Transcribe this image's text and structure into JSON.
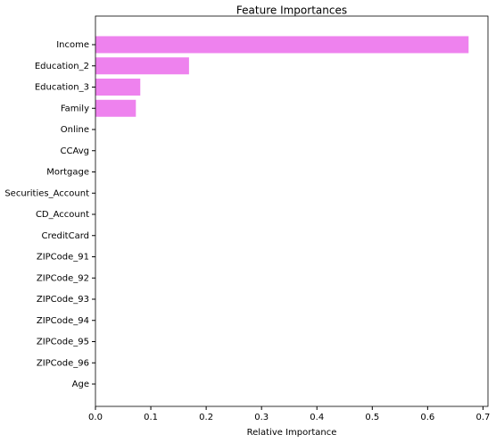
{
  "chart_data": {
    "type": "barh",
    "title": "Feature Importances",
    "x_label": "Relative Importance",
    "categories": [
      "Income",
      "Education_2",
      "Education_3",
      "Family",
      "Online",
      "CCAvg",
      "Mortgage",
      "Securities_Account",
      "CD_Account",
      "CreditCard",
      "ZIPCode_91",
      "ZIPCode_92",
      "ZIPCode_93",
      "ZIPCode_94",
      "ZIPCode_95",
      "ZIPCode_96",
      "Age"
    ],
    "values": [
      0.674,
      0.169,
      0.081,
      0.073,
      0,
      0,
      0,
      0,
      0,
      0,
      0,
      0,
      0,
      0,
      0,
      0,
      0
    ],
    "color": "#ee82ee",
    "xlim": [
      0,
      0.709
    ],
    "xticks": [
      {
        "value": 0,
        "label": "0.0"
      },
      0.1,
      0.2,
      0.3,
      0.4,
      0.5,
      0.6,
      0.7
    ]
  }
}
